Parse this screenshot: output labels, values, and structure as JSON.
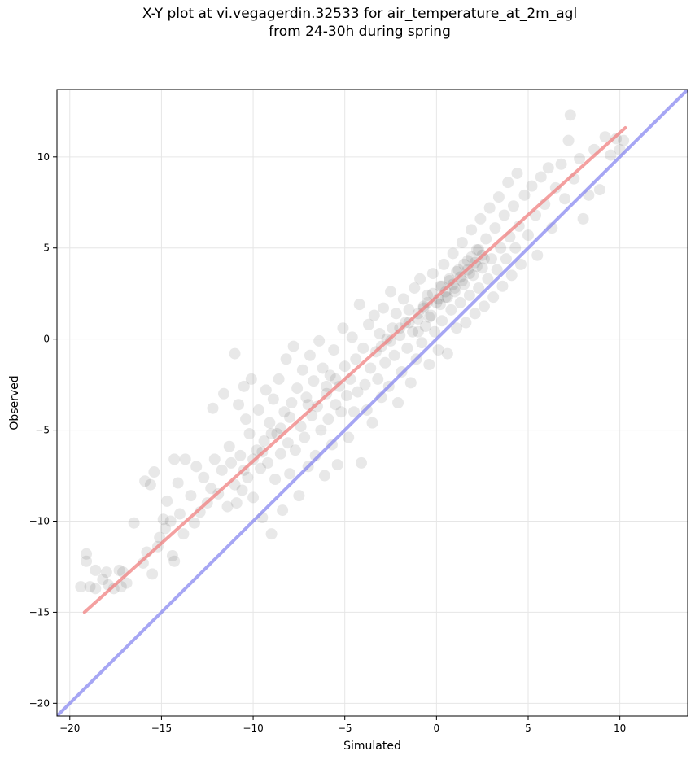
{
  "chart_data": {
    "type": "scatter",
    "title": "X-Y plot at vi.vegagerdin.32533 for air_temperature_at_2m_agl\nfrom 24-30h during spring",
    "xlabel": "Simulated",
    "ylabel": "Observed",
    "xlim": [
      -20.7,
      13.7
    ],
    "ylim": [
      -20.7,
      13.7
    ],
    "xticks": [
      -20,
      -15,
      -10,
      -5,
      0,
      5,
      10
    ],
    "yticks": [
      -20,
      -15,
      -10,
      -5,
      0,
      5,
      10
    ],
    "xtick_labels": [
      "−20",
      "−15",
      "−10",
      "−5",
      "0",
      "5",
      "10"
    ],
    "ytick_labels": [
      "−20",
      "−15",
      "−10",
      "−5",
      "0",
      "5",
      "10"
    ],
    "grid": true,
    "point_color": "#000000",
    "series": [
      {
        "type": "scatter",
        "points": [
          [
            -19.4,
            -13.6
          ],
          [
            -19.1,
            -12.2
          ],
          [
            -19.1,
            -11.8
          ],
          [
            -18.9,
            -13.6
          ],
          [
            -18.6,
            -13.7
          ],
          [
            -18.6,
            -12.7
          ],
          [
            -18.2,
            -13.2
          ],
          [
            -18.0,
            -12.8
          ],
          [
            -17.9,
            -13.5
          ],
          [
            -17.6,
            -13.7
          ],
          [
            -17.3,
            -12.7
          ],
          [
            -17.2,
            -13.6
          ],
          [
            -17.1,
            -12.8
          ],
          [
            -16.9,
            -13.4
          ],
          [
            -16.5,
            -10.1
          ],
          [
            -16.0,
            -12.3
          ],
          [
            -15.9,
            -7.8
          ],
          [
            -15.8,
            -11.7
          ],
          [
            -15.6,
            -8.0
          ],
          [
            -15.5,
            -12.9
          ],
          [
            -15.4,
            -7.3
          ],
          [
            -15.2,
            -11.4
          ],
          [
            -15.1,
            -10.9
          ],
          [
            -14.9,
            -9.9
          ],
          [
            -14.8,
            -10.4
          ],
          [
            -14.7,
            -8.9
          ],
          [
            -14.5,
            -10.0
          ],
          [
            -14.4,
            -11.9
          ],
          [
            -14.3,
            -12.2
          ],
          [
            -14.3,
            -6.6
          ],
          [
            -14.1,
            -7.9
          ],
          [
            -14.0,
            -9.6
          ],
          [
            -13.8,
            -10.7
          ],
          [
            -13.7,
            -6.6
          ],
          [
            -13.4,
            -8.6
          ],
          [
            -13.2,
            -10.1
          ],
          [
            -13.1,
            -7.0
          ],
          [
            -12.9,
            -9.5
          ],
          [
            -12.7,
            -7.6
          ],
          [
            -12.5,
            -9.0
          ],
          [
            -12.3,
            -8.2
          ],
          [
            -12.2,
            -3.8
          ],
          [
            -12.1,
            -6.6
          ],
          [
            -11.9,
            -8.5
          ],
          [
            -11.7,
            -7.2
          ],
          [
            -11.6,
            -3.0
          ],
          [
            -11.4,
            -9.2
          ],
          [
            -11.3,
            -5.9
          ],
          [
            -11.2,
            -6.8
          ],
          [
            -11.0,
            -0.8
          ],
          [
            -10.9,
            -9.0
          ],
          [
            -10.8,
            -3.6
          ],
          [
            -10.7,
            -6.4
          ],
          [
            -10.6,
            -8.3
          ],
          [
            -10.5,
            -2.6
          ],
          [
            -10.4,
            -4.4
          ],
          [
            -10.3,
            -7.6
          ],
          [
            -10.2,
            -5.2
          ],
          [
            -10.1,
            -2.2
          ],
          [
            -10.0,
            -8.7
          ],
          [
            -9.8,
            -6.1
          ],
          [
            -9.7,
            -3.9
          ],
          [
            -9.6,
            -7.1
          ],
          [
            -9.5,
            -9.8
          ],
          [
            -9.4,
            -5.6
          ],
          [
            -9.3,
            -2.8
          ],
          [
            -9.2,
            -6.8
          ],
          [
            -9.1,
            -4.6
          ],
          [
            -9.0,
            -10.7
          ],
          [
            -8.9,
            -3.3
          ],
          [
            -8.8,
            -7.7
          ],
          [
            -8.7,
            -5.2
          ],
          [
            -8.6,
            -2.2
          ],
          [
            -8.5,
            -6.3
          ],
          [
            -8.4,
            -9.4
          ],
          [
            -8.3,
            -4.0
          ],
          [
            -8.2,
            -1.1
          ],
          [
            -8.1,
            -5.7
          ],
          [
            -8.0,
            -7.4
          ],
          [
            -7.9,
            -3.5
          ],
          [
            -7.8,
            -0.4
          ],
          [
            -7.7,
            -6.1
          ],
          [
            -7.6,
            -2.7
          ],
          [
            -7.5,
            -8.6
          ],
          [
            -7.4,
            -4.8
          ],
          [
            -7.3,
            -1.7
          ],
          [
            -7.2,
            -5.4
          ],
          [
            -7.1,
            -3.2
          ],
          [
            -7.0,
            -7.0
          ],
          [
            -6.9,
            -0.9
          ],
          [
            -6.8,
            -4.2
          ],
          [
            -6.7,
            -2.3
          ],
          [
            -6.6,
            -6.4
          ],
          [
            -6.5,
            -3.7
          ],
          [
            -6.4,
            -0.1
          ],
          [
            -6.3,
            -5.0
          ],
          [
            -6.2,
            -1.6
          ],
          [
            -6.1,
            -7.5
          ],
          [
            -6.0,
            -3.0
          ],
          [
            -5.9,
            -4.4
          ],
          [
            -5.8,
            -2.0
          ],
          [
            -5.7,
            -5.8
          ],
          [
            -5.6,
            -0.6
          ],
          [
            -5.5,
            -3.6
          ],
          [
            -5.4,
            -6.9
          ],
          [
            -5.3,
            -2.6
          ],
          [
            -5.2,
            -4.0
          ],
          [
            -5.1,
            0.6
          ],
          [
            -5.0,
            -1.5
          ],
          [
            -4.9,
            -3.1
          ],
          [
            -4.8,
            -5.4
          ],
          [
            -4.7,
            -2.2
          ],
          [
            -4.6,
            0.1
          ],
          [
            -4.5,
            -4.0
          ],
          [
            -4.4,
            -1.1
          ],
          [
            -4.3,
            -2.9
          ],
          [
            -4.2,
            1.9
          ],
          [
            -4.1,
            -6.8
          ],
          [
            -4.0,
            -0.5
          ],
          [
            -3.9,
            -2.5
          ],
          [
            -3.8,
            -3.9
          ],
          [
            -3.7,
            0.8
          ],
          [
            -3.6,
            -1.6
          ],
          [
            -3.5,
            -4.6
          ],
          [
            -3.4,
            1.3
          ],
          [
            -3.3,
            -0.7
          ],
          [
            -3.2,
            -2.2
          ],
          [
            -3.1,
            0.3
          ],
          [
            -3.0,
            -3.2
          ],
          [
            -2.9,
            1.7
          ],
          [
            -2.8,
            -1.3
          ],
          [
            -2.7,
            0.0
          ],
          [
            -2.6,
            -2.6
          ],
          [
            -2.5,
            2.6
          ],
          [
            -2.4,
            0.6
          ],
          [
            -2.3,
            -0.9
          ],
          [
            -2.2,
            1.4
          ],
          [
            -2.1,
            -3.5
          ],
          [
            -2.0,
            0.2
          ],
          [
            -1.9,
            -1.8
          ],
          [
            -1.8,
            2.2
          ],
          [
            -1.7,
            0.9
          ],
          [
            -1.6,
            -0.5
          ],
          [
            -1.5,
            1.6
          ],
          [
            -1.4,
            -2.4
          ],
          [
            -1.3,
            0.4
          ],
          [
            -1.2,
            2.8
          ],
          [
            -1.1,
            -1.1
          ],
          [
            -1.0,
            1.1
          ],
          [
            -0.9,
            3.3
          ],
          [
            -0.8,
            -0.2
          ],
          [
            -0.7,
            1.8
          ],
          [
            -0.6,
            0.7
          ],
          [
            -0.5,
            2.4
          ],
          [
            -0.4,
            -1.4
          ],
          [
            -0.3,
            1.3
          ],
          [
            -0.2,
            3.6
          ],
          [
            -0.1,
            0.4
          ],
          [
            0.0,
            2.0
          ],
          [
            0.1,
            -0.6
          ],
          [
            0.2,
            2.9
          ],
          [
            0.3,
            1.0
          ],
          [
            0.4,
            4.1
          ],
          [
            0.5,
            2.3
          ],
          [
            0.6,
            -0.8
          ],
          [
            0.7,
            3.2
          ],
          [
            0.8,
            1.6
          ],
          [
            0.9,
            4.7
          ],
          [
            1.0,
            2.6
          ],
          [
            1.1,
            0.6
          ],
          [
            1.2,
            3.8
          ],
          [
            1.3,
            2.0
          ],
          [
            1.4,
            5.3
          ],
          [
            1.5,
            3.0
          ],
          [
            1.6,
            0.9
          ],
          [
            1.7,
            4.3
          ],
          [
            1.8,
            2.4
          ],
          [
            1.9,
            6.0
          ],
          [
            2.0,
            3.5
          ],
          [
            2.1,
            1.4
          ],
          [
            2.2,
            4.9
          ],
          [
            2.3,
            2.8
          ],
          [
            2.4,
            6.6
          ],
          [
            2.5,
            3.9
          ],
          [
            2.6,
            1.8
          ],
          [
            2.7,
            5.5
          ],
          [
            2.8,
            3.3
          ],
          [
            2.9,
            7.2
          ],
          [
            3.0,
            4.4
          ],
          [
            3.1,
            2.3
          ],
          [
            3.2,
            6.1
          ],
          [
            3.3,
            3.8
          ],
          [
            3.4,
            7.8
          ],
          [
            3.5,
            5.0
          ],
          [
            3.6,
            2.9
          ],
          [
            3.7,
            6.8
          ],
          [
            3.8,
            4.4
          ],
          [
            3.9,
            8.6
          ],
          [
            4.0,
            5.6
          ],
          [
            4.1,
            3.5
          ],
          [
            4.2,
            7.3
          ],
          [
            4.3,
            5.0
          ],
          [
            4.4,
            9.1
          ],
          [
            4.5,
            6.2
          ],
          [
            4.6,
            4.1
          ],
          [
            4.8,
            7.9
          ],
          [
            5.0,
            5.7
          ],
          [
            5.2,
            8.4
          ],
          [
            5.4,
            6.8
          ],
          [
            5.5,
            4.6
          ],
          [
            5.7,
            8.9
          ],
          [
            5.9,
            7.4
          ],
          [
            6.1,
            9.4
          ],
          [
            6.3,
            6.1
          ],
          [
            6.5,
            8.3
          ],
          [
            6.8,
            9.6
          ],
          [
            7.0,
            7.7
          ],
          [
            7.2,
            10.9
          ],
          [
            7.3,
            12.3
          ],
          [
            7.5,
            8.8
          ],
          [
            7.8,
            9.9
          ],
          [
            8.0,
            6.6
          ],
          [
            8.3,
            7.9
          ],
          [
            8.6,
            10.4
          ],
          [
            8.9,
            8.2
          ],
          [
            9.2,
            11.1
          ],
          [
            9.5,
            10.1
          ],
          [
            9.8,
            11.0
          ],
          [
            10.0,
            10.4
          ],
          [
            10.2,
            10.9
          ],
          [
            -0.5,
            2.0
          ],
          [
            -0.2,
            2.5
          ],
          [
            0.1,
            2.2
          ],
          [
            0.3,
            2.9
          ],
          [
            0.5,
            2.6
          ],
          [
            0.7,
            3.3
          ],
          [
            0.9,
            3.0
          ],
          [
            1.1,
            3.7
          ],
          [
            1.3,
            3.4
          ],
          [
            1.5,
            4.1
          ],
          [
            1.7,
            3.8
          ],
          [
            1.9,
            4.5
          ],
          [
            2.1,
            4.2
          ],
          [
            2.3,
            4.9
          ],
          [
            2.5,
            4.6
          ],
          [
            -1.0,
            1.4
          ],
          [
            -0.7,
            1.7
          ],
          [
            -0.4,
            1.2
          ],
          [
            0.2,
            1.9
          ],
          [
            0.6,
            2.3
          ],
          [
            1.0,
            2.8
          ],
          [
            1.4,
            3.2
          ],
          [
            1.8,
            3.6
          ],
          [
            2.2,
            4.0
          ],
          [
            2.6,
            4.4
          ],
          [
            -2.0,
            0.6
          ],
          [
            -1.5,
            0.9
          ],
          [
            -1.0,
            0.4
          ],
          [
            -3.0,
            -0.4
          ],
          [
            -2.5,
            -0.1
          ],
          [
            -6.0,
            -2.6
          ],
          [
            -5.5,
            -2.2
          ],
          [
            -7.0,
            -3.6
          ],
          [
            -8.0,
            -4.3
          ],
          [
            -9.0,
            -5.2
          ],
          [
            -9.5,
            -6.2
          ],
          [
            -10.0,
            -6.6
          ],
          [
            -10.5,
            -7.2
          ],
          [
            -11.0,
            -8.0
          ],
          [
            -8.5,
            -4.9
          ]
        ]
      }
    ],
    "fit_line": {
      "x": [
        -19.2,
        10.3
      ],
      "y": [
        -15.0,
        11.6
      ],
      "color": "#f08080"
    },
    "identity_line": {
      "x": [
        -20.7,
        13.7
      ],
      "y": [
        -20.7,
        13.7
      ],
      "color": "#8080f0"
    }
  }
}
